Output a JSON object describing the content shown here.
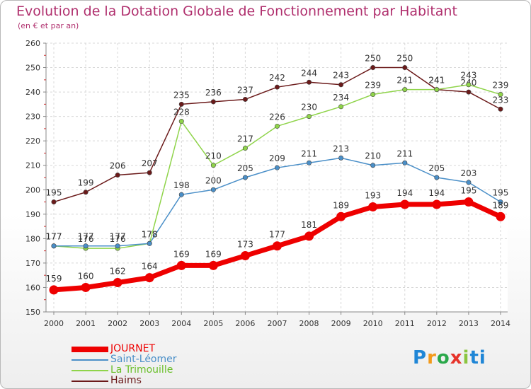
{
  "chart_data": {
    "type": "line",
    "title": "Evolution de la Dotation Globale de Fonctionnement par Habitant",
    "subtitle": "(en € et par an)",
    "x": [
      "2000",
      "2001",
      "2002",
      "2003",
      "2004",
      "2005",
      "2006",
      "2007",
      "2008",
      "2009",
      "2010",
      "2011",
      "2012",
      "2013",
      "2014"
    ],
    "ylim": [
      150,
      260
    ],
    "yticks": [
      150,
      160,
      170,
      180,
      190,
      200,
      210,
      220,
      230,
      240,
      250,
      260
    ],
    "grid": true,
    "legend_position": "bottom-left",
    "series": [
      {
        "name": "Haims",
        "color": "#6b1a1a",
        "values": [
          195,
          199,
          206,
          207,
          235,
          236,
          237,
          242,
          244,
          243,
          250,
          250,
          241,
          240,
          233
        ]
      },
      {
        "name": "La Trimouille",
        "color": "#8fd44a",
        "values": [
          177,
          176,
          176,
          178,
          228,
          210,
          217,
          226,
          230,
          234,
          239,
          241,
          241,
          243,
          239
        ]
      },
      {
        "name": "Saint-Léomer",
        "color": "#4a8fc8",
        "values": [
          177,
          177,
          177,
          178,
          198,
          200,
          205,
          209,
          211,
          213,
          210,
          211,
          205,
          203,
          195
        ]
      },
      {
        "name": "JOURNET",
        "color": "#ee0000",
        "values": [
          159,
          160,
          162,
          164,
          169,
          169,
          173,
          177,
          181,
          189,
          193,
          194,
          194,
          195,
          189
        ]
      }
    ]
  },
  "legend": [
    {
      "name": "JOURNET",
      "color": "#ee0000",
      "label_color": "#ee0000",
      "thickness": 8
    },
    {
      "name": "Saint-Léomer",
      "color": "#4a8fc8",
      "label_color": "#4a8fc8",
      "thickness": 2
    },
    {
      "name": "La Trimouille",
      "color": "#8fd44a",
      "label_color": "#6abf2a",
      "thickness": 2
    },
    {
      "name": "Haims",
      "color": "#6b1a1a",
      "label_color": "#6b1a1a",
      "thickness": 2
    }
  ],
  "logo": {
    "text": "Proxiti",
    "name": "proxiti-logo"
  }
}
